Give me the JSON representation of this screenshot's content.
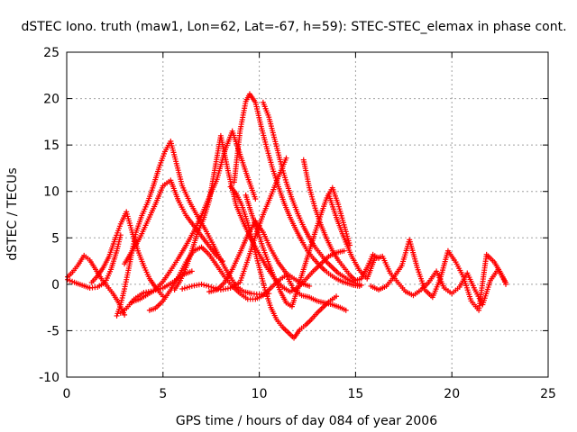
{
  "chart_data": {
    "type": "scatter",
    "title": "dSTEC Iono. truth (maw1, Lon=62, Lat=-67, h=59): STEC-STEC_elemax in phase cont.",
    "xlabel": "GPS time / hours of day 084 of year 2006",
    "ylabel": "dSTEC  / TECUs",
    "xlim": [
      0,
      25
    ],
    "ylim": [
      -10,
      25
    ],
    "xticks": [
      0,
      5,
      10,
      15,
      20,
      25
    ],
    "yticks": [
      -10,
      -5,
      0,
      5,
      10,
      15,
      20,
      25
    ],
    "grid": true,
    "marker": "+",
    "color": "#ff0000",
    "series": [
      {
        "x": [
          0.05,
          0.3,
          0.6,
          0.9,
          1.2,
          1.5,
          1.8,
          2.1,
          2.4,
          2.7,
          3.0
        ],
        "y": [
          0.8,
          1.3,
          2.1,
          3.1,
          2.6,
          1.6,
          0.6,
          -0.2,
          -1.0,
          -2.0,
          -3.3
        ]
      },
      {
        "x": [
          0.05,
          0.4,
          0.8,
          1.2,
          1.6,
          2.0,
          2.3,
          2.6,
          2.8
        ],
        "y": [
          0.5,
          0.2,
          -0.1,
          -0.4,
          -0.3,
          0.2,
          1.6,
          3.6,
          5.3
        ]
      },
      {
        "x": [
          1.3,
          1.6,
          1.9,
          2.2,
          2.5,
          2.8,
          3.1,
          3.4,
          3.7,
          4.0,
          4.3,
          4.6,
          5.0
        ],
        "y": [
          0.2,
          0.9,
          1.8,
          3.0,
          4.8,
          6.5,
          7.8,
          5.6,
          3.6,
          2.0,
          0.6,
          -0.3,
          -1.3
        ]
      },
      {
        "x": [
          2.6,
          2.8,
          3.0,
          3.2,
          3.4,
          3.6,
          3.9,
          4.2,
          4.5,
          4.8,
          5.1,
          5.4,
          5.7,
          6.0,
          6.4,
          6.8,
          7.2,
          7.6,
          8.0,
          8.4,
          8.8,
          9.2,
          9.6,
          10.0,
          10.5
        ],
        "y": [
          -3.4,
          -2.2,
          -0.5,
          1.5,
          3.6,
          5.6,
          7.4,
          8.8,
          10.6,
          12.6,
          14.3,
          15.4,
          13.0,
          10.6,
          8.8,
          7.3,
          5.9,
          4.3,
          2.6,
          1.1,
          -0.2,
          -0.8,
          -1.0,
          -1.1,
          -1.0
        ]
      },
      {
        "x": [
          2.8,
          3.1,
          3.5,
          4.0,
          4.5,
          5.0,
          5.5,
          6.0,
          6.5
        ],
        "y": [
          -3.1,
          -2.6,
          -1.6,
          -0.9,
          -0.7,
          -0.4,
          0.2,
          1.0,
          1.4
        ]
      },
      {
        "x": [
          3.0,
          3.4,
          3.8,
          4.2,
          4.6,
          5.0,
          5.4,
          5.8,
          6.2,
          6.6,
          7.0,
          7.4,
          7.8,
          8.1
        ],
        "y": [
          2.2,
          3.6,
          5.0,
          6.8,
          8.6,
          10.6,
          11.2,
          9.0,
          7.4,
          6.3,
          5.2,
          4.1,
          3.0,
          2.5
        ]
      },
      {
        "x": [
          3.4,
          3.8,
          4.2,
          4.6,
          5.0,
          5.4,
          5.8,
          6.2,
          6.6,
          7.0,
          7.4,
          7.8,
          8.2,
          8.6,
          9.0,
          9.4,
          9.8
        ],
        "y": [
          -1.9,
          -1.6,
          -1.1,
          -0.6,
          0.3,
          1.5,
          2.8,
          4.2,
          5.7,
          7.4,
          9.4,
          11.3,
          14.3,
          16.5,
          14.0,
          11.5,
          9.2
        ]
      },
      {
        "x": [
          4.3,
          4.6,
          5.0,
          5.4,
          5.8,
          6.2,
          6.6,
          7.0,
          7.4,
          7.8,
          8.2,
          8.6,
          9.0,
          9.4,
          9.8,
          10.2,
          10.6,
          11.0,
          11.4,
          11.8,
          12.2,
          12.6,
          13.0,
          13.4,
          13.8,
          14.2,
          14.5
        ],
        "y": [
          -2.8,
          -2.6,
          -1.8,
          -0.6,
          0.8,
          2.4,
          3.6,
          4.0,
          3.2,
          2.0,
          0.8,
          -0.2,
          -1.0,
          -1.6,
          -1.6,
          -1.2,
          -0.4,
          0.4,
          1.0,
          -0.6,
          -1.2,
          -1.4,
          -1.8,
          -2.0,
          -2.2,
          -2.5,
          -2.8
        ]
      },
      {
        "x": [
          5.6,
          5.9,
          6.2,
          6.5,
          6.8,
          7.1,
          7.4,
          7.7,
          8.0,
          8.4,
          8.8,
          9.2,
          9.6,
          10.0,
          10.4,
          10.8,
          11.2,
          11.6,
          12.0,
          12.4,
          12.8,
          13.2,
          13.6,
          14.0,
          14.4
        ],
        "y": [
          -0.6,
          0.4,
          1.8,
          3.6,
          5.6,
          7.0,
          9.0,
          12.5,
          16.0,
          12.0,
          8.5,
          6.5,
          4.8,
          3.2,
          1.8,
          0.6,
          -0.3,
          -0.8,
          -0.4,
          0.5,
          1.4,
          2.2,
          3.0,
          3.4,
          3.6
        ]
      },
      {
        "x": [
          6.0,
          6.5,
          7.0,
          7.5,
          8.0,
          8.5,
          9.0,
          9.4,
          9.8,
          10.2,
          10.6,
          11.0,
          11.4
        ],
        "y": [
          -0.5,
          -0.2,
          0.0,
          -0.3,
          -0.6,
          -0.4,
          0.2,
          2.6,
          5.2,
          7.5,
          9.5,
          11.6,
          13.6
        ]
      },
      {
        "x": [
          7.4,
          7.8,
          8.2,
          8.6,
          9.0,
          9.4,
          9.8,
          10.2,
          10.6,
          11.0,
          11.4,
          11.8,
          12.2,
          12.6
        ],
        "y": [
          -0.8,
          -0.6,
          0.2,
          1.6,
          3.4,
          5.3,
          6.8,
          5.6,
          3.8,
          2.3,
          1.2,
          0.6,
          0.1,
          -0.2
        ]
      },
      {
        "x": [
          8.5,
          8.8,
          9.1,
          9.4,
          9.7,
          10.0,
          10.3,
          10.6,
          10.9,
          11.2,
          11.5,
          11.8,
          12.1,
          12.4,
          12.7,
          13.0,
          13.3,
          13.6,
          14.0
        ],
        "y": [
          10.5,
          9.8,
          8.5,
          6.6,
          4.2,
          1.8,
          -0.6,
          -2.5,
          -3.8,
          -4.6,
          -5.2,
          -5.8,
          -4.9,
          -4.4,
          -3.8,
          -3.1,
          -2.5,
          -1.9,
          -1.3
        ]
      },
      {
        "x": [
          8.7,
          9.0,
          9.3,
          9.5,
          9.8,
          10.1,
          10.4,
          10.7,
          11.0,
          11.3,
          11.6,
          11.9,
          12.2,
          12.5,
          12.8,
          13.1,
          13.4,
          13.7,
          14.0,
          14.3,
          14.6,
          14.9,
          15.2
        ],
        "y": [
          11.0,
          16.5,
          19.7,
          20.5,
          19.6,
          17.0,
          14.6,
          12.4,
          10.5,
          8.7,
          7.2,
          5.9,
          4.7,
          3.6,
          2.8,
          2.1,
          1.5,
          1.0,
          0.6,
          0.3,
          0.1,
          -0.1,
          -0.2
        ]
      },
      {
        "x": [
          9.3,
          9.6,
          9.9,
          10.2,
          10.5,
          10.8,
          11.1,
          11.4,
          11.7,
          12.0,
          12.3,
          12.6,
          12.9,
          13.2,
          13.5,
          13.8,
          14.1,
          14.4,
          14.7
        ],
        "y": [
          9.6,
          7.6,
          5.8,
          3.9,
          2.2,
          0.6,
          -0.8,
          -2.0,
          -2.4,
          -0.4,
          1.6,
          3.6,
          5.6,
          7.5,
          9.3,
          10.4,
          8.6,
          6.4,
          4.2
        ]
      },
      {
        "x": [
          10.2,
          10.5,
          10.8,
          11.1,
          11.4,
          11.7,
          12.0,
          12.3,
          12.6,
          12.9,
          13.2,
          13.5,
          13.8,
          14.1,
          14.4,
          14.7,
          15.0,
          15.3
        ],
        "y": [
          19.6,
          18.0,
          15.6,
          13.2,
          11.0,
          9.2,
          7.6,
          6.2,
          5.0,
          4.0,
          3.2,
          2.4,
          1.8,
          1.2,
          0.8,
          0.4,
          0.1,
          -0.1
        ]
      },
      {
        "x": [
          12.3,
          12.6,
          12.9,
          13.2,
          13.5,
          13.8,
          14.1,
          14.4,
          14.7,
          15.0,
          15.3,
          15.6,
          15.9,
          16.2
        ],
        "y": [
          13.4,
          10.4,
          8.2,
          6.4,
          4.9,
          3.6,
          2.6,
          1.8,
          1.0,
          0.4,
          0.6,
          1.8,
          3.2,
          2.8
        ]
      },
      {
        "x": [
          13.6,
          14.0,
          14.4,
          14.8,
          15.2,
          15.6,
          16.0,
          16.4,
          16.8,
          17.2,
          17.6,
          18.0,
          18.4,
          18.8,
          19.2,
          19.6,
          20.0,
          20.4,
          20.8,
          21.2,
          21.6,
          22.0,
          22.4,
          22.8
        ],
        "y": [
          9.7,
          7.2,
          5.0,
          3.0,
          1.5,
          0.6,
          2.8,
          3.0,
          1.2,
          0.2,
          -0.8,
          -1.2,
          -0.6,
          0.2,
          1.4,
          -0.4,
          -1.0,
          -0.3,
          1.2,
          -0.6,
          -2.2,
          0.4,
          1.6,
          0.2
        ]
      },
      {
        "x": [
          15.8,
          16.2,
          16.6,
          17.0,
          17.4,
          17.8,
          18.2,
          18.6,
          19.0,
          19.4,
          19.8,
          20.2,
          20.6,
          21.0,
          21.4,
          21.8,
          22.2,
          22.6,
          22.8
        ],
        "y": [
          -0.2,
          -0.6,
          -0.2,
          0.8,
          2.0,
          4.8,
          1.8,
          -0.6,
          -1.4,
          0.6,
          3.6,
          2.4,
          0.8,
          -1.8,
          -2.8,
          3.2,
          2.4,
          1.0,
          0.0
        ]
      }
    ]
  }
}
